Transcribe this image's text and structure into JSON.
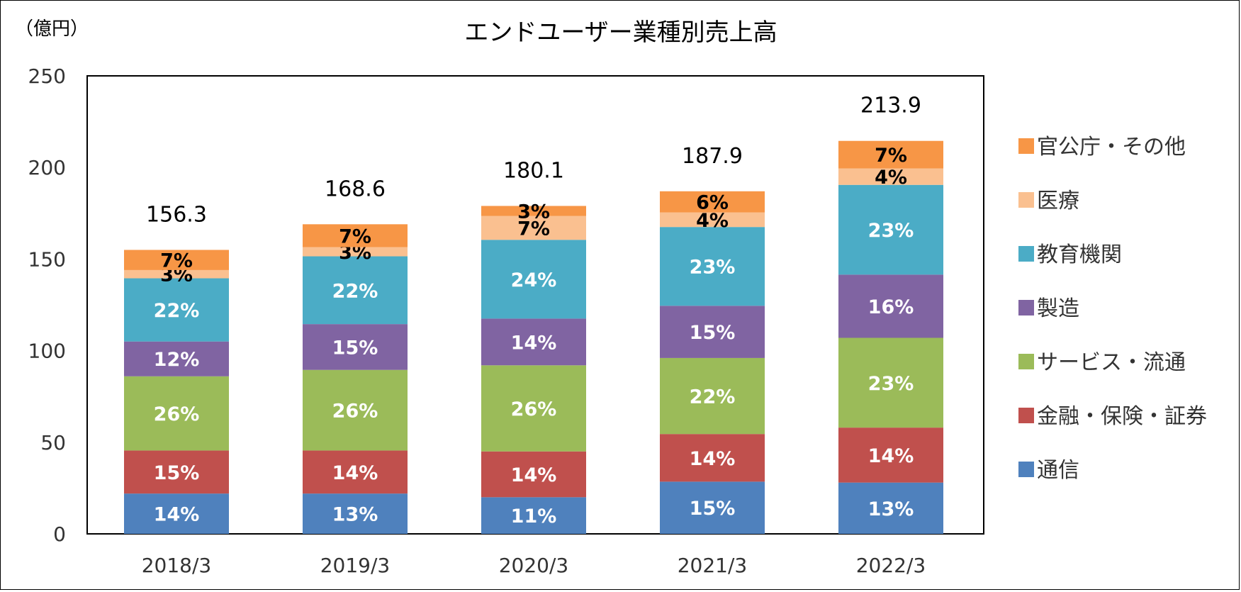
{
  "unit_label": "（億円）",
  "chart_data": {
    "type": "bar",
    "stacked": true,
    "title": "エンドユーザー業種別売上高",
    "xlabel": "",
    "ylabel": "",
    "ylim": [
      0,
      250
    ],
    "yticks": [
      0,
      50,
      100,
      150,
      200,
      250
    ],
    "grid": false,
    "legend_position": "right",
    "categories": [
      "2018/3",
      "2019/3",
      "2020/3",
      "2021/3",
      "2022/3"
    ],
    "totals": [
      "156.3",
      "168.6",
      "180.1",
      "187.9",
      "213.9"
    ],
    "series": [
      {
        "name": "通信",
        "color": "#4f81bd",
        "label_color": "#ffffff",
        "values": [
          22,
          22,
          20,
          28.5,
          28
        ],
        "labels": [
          "14%",
          "13%",
          "11%",
          "15%",
          "13%"
        ]
      },
      {
        "name": "金融・保険・証券",
        "color": "#c0504d",
        "label_color": "#ffffff",
        "values": [
          23.5,
          23.5,
          25,
          26,
          30
        ],
        "labels": [
          "15%",
          "14%",
          "14%",
          "14%",
          "14%"
        ]
      },
      {
        "name": "サービス・流通",
        "color": "#9bbb59",
        "label_color": "#ffffff",
        "values": [
          40.5,
          44,
          47,
          41.5,
          49
        ],
        "labels": [
          "26%",
          "26%",
          "26%",
          "22%",
          "23%"
        ]
      },
      {
        "name": "製造",
        "color": "#8064a2",
        "label_color": "#ffffff",
        "values": [
          19,
          25,
          25.5,
          28.5,
          34.5
        ],
        "labels": [
          "12%",
          "15%",
          "14%",
          "15%",
          "16%"
        ]
      },
      {
        "name": "教育機関",
        "color": "#4bacc6",
        "label_color": "#ffffff",
        "values": [
          34.5,
          37,
          43,
          43,
          49
        ],
        "labels": [
          "22%",
          "22%",
          "24%",
          "23%",
          "23%"
        ]
      },
      {
        "name": "医療",
        "color": "#fac090",
        "label_color": "#000000",
        "values": [
          4.5,
          5,
          13,
          8,
          9
        ],
        "labels": [
          "3%",
          "3%",
          "7%",
          "4%",
          "4%"
        ]
      },
      {
        "name": "官公庁・その他",
        "color": "#f79646",
        "label_color": "#000000",
        "values": [
          11,
          12.5,
          5.5,
          11.5,
          15
        ],
        "labels": [
          "7%",
          "7%",
          "3%",
          "6%",
          "7%"
        ]
      }
    ]
  }
}
